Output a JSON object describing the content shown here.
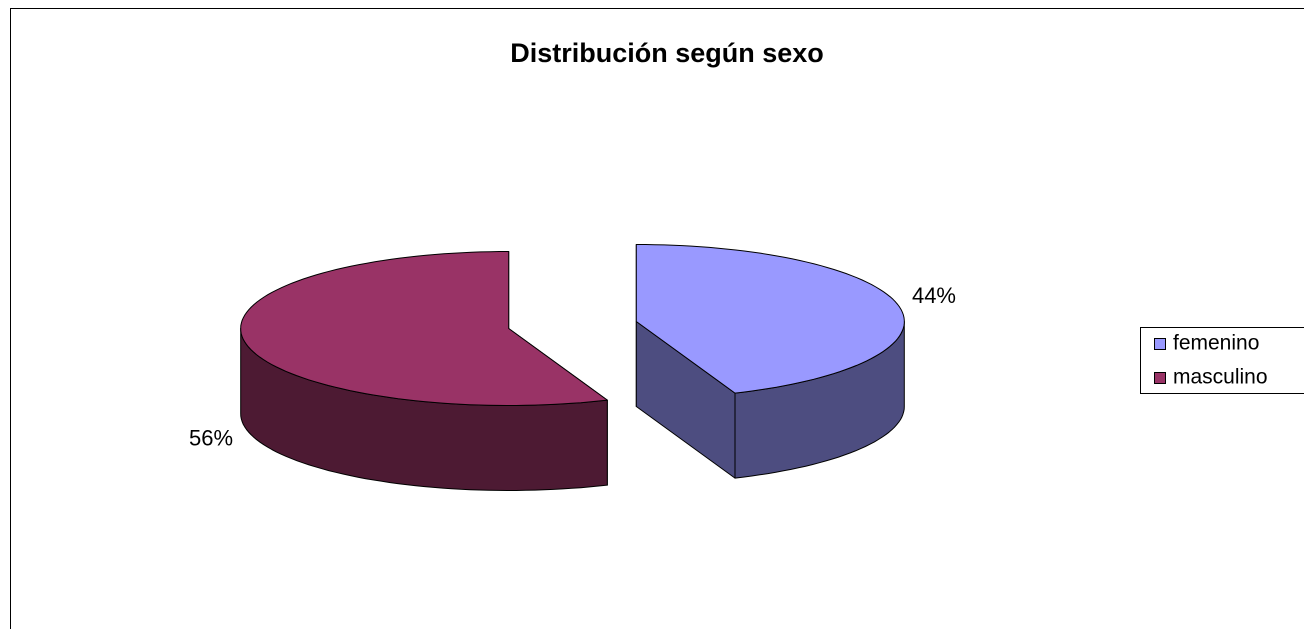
{
  "chart_data": {
    "type": "pie3d",
    "title": "Distribución según sexo",
    "categories": [
      "femenino",
      "masculino"
    ],
    "values": [
      44,
      56
    ],
    "value_labels": [
      "44%",
      "56%"
    ],
    "colors": [
      "#9999ff",
      "#993366"
    ],
    "legend": "right"
  }
}
